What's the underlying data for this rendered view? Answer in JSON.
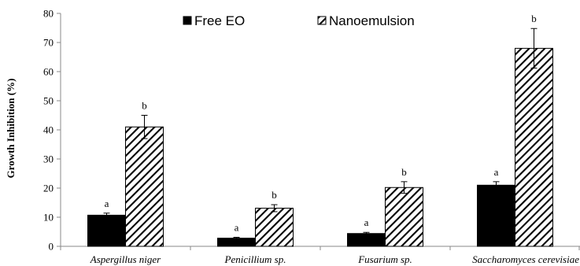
{
  "chart_data": {
    "type": "bar",
    "title": "",
    "xlabel": "",
    "ylabel": "Growth Inhibition (%)",
    "ylim": [
      0,
      80
    ],
    "yticks": [
      0,
      10,
      20,
      30,
      40,
      50,
      60,
      70,
      80
    ],
    "grid": false,
    "legend_position": "top",
    "categories": [
      "Aspergillus niger",
      "Penicillium sp.",
      "Fusarium sp.",
      "Saccharomyces cerevisiae"
    ],
    "series": [
      {
        "name": "Free EO",
        "fill": "solid",
        "color": "#000000",
        "values": [
          10.7,
          2.8,
          4.4,
          21.0
        ],
        "errors": [
          0.7,
          0.3,
          0.4,
          1.2
        ],
        "labels": [
          "a",
          "a",
          "a",
          "a"
        ]
      },
      {
        "name": "Nanoemulsion",
        "fill": "diagonal-hatch",
        "color": "#000000",
        "values": [
          41.0,
          13.1,
          20.2,
          68.0
        ],
        "errors": [
          4.0,
          1.2,
          2.0,
          6.8
        ],
        "labels": [
          "b",
          "b",
          "b",
          "b"
        ]
      }
    ]
  }
}
